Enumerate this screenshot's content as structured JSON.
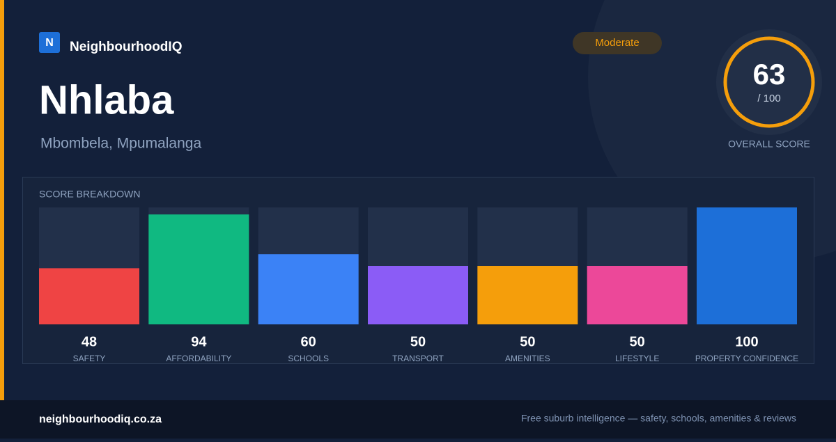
{
  "brand": {
    "logo": "N",
    "name": "NeighbourhoodIQ"
  },
  "title": "Nhlaba",
  "subtitle": "Mbombela, Mpumalanga",
  "badge": "Moderate",
  "score": {
    "value": 63,
    "max_label": "/ 100",
    "label": "OVERALL SCORE"
  },
  "chart_data": {
    "type": "bar",
    "title": "SCORE BREAKDOWN",
    "categories": [
      "SAFETY",
      "AFFORDABILITY",
      "SCHOOLS",
      "TRANSPORT",
      "AMENITIES",
      "LIFESTYLE",
      "PROPERTY CONFIDENCE"
    ],
    "values": [
      48,
      94,
      60,
      50,
      50,
      50,
      100
    ],
    "colors": [
      "#ef4444",
      "#10b981",
      "#3b82f6",
      "#8b5cf6",
      "#f59e0b",
      "#ec4899",
      "#1d6fd8"
    ],
    "ylim": [
      0,
      100
    ]
  },
  "footer": {
    "site": "neighbourhoodiq.co.za",
    "tagline": "Free suburb intelligence — safety, schools, amenities & reviews"
  }
}
